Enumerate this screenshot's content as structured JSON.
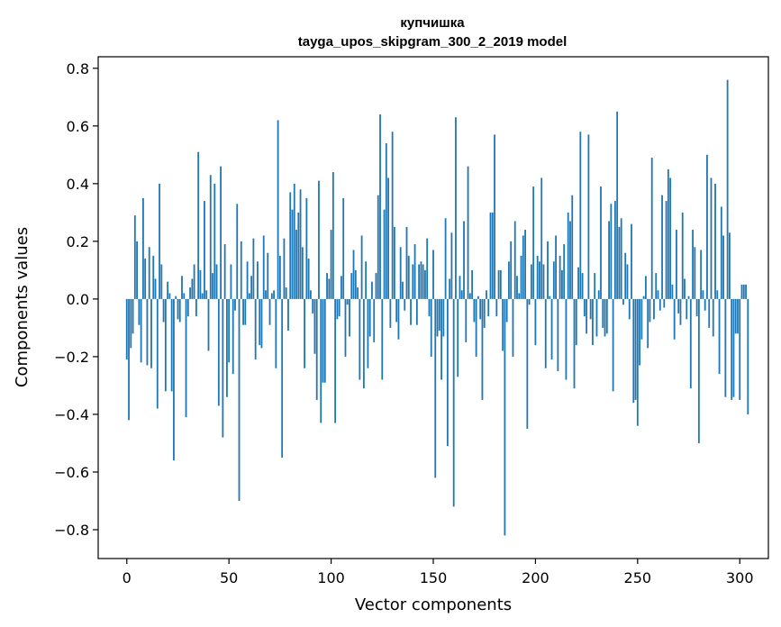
{
  "chart_data": {
    "type": "bar",
    "title": "купчишка",
    "subtitle": "tayga_upos_skipgram_300_2_2019 model",
    "xlabel": "Vector components",
    "ylabel": "Components values",
    "xlim": [
      -14,
      314
    ],
    "ylim": [
      -0.9,
      0.84
    ],
    "xticks": [
      0,
      50,
      100,
      150,
      200,
      250,
      300
    ],
    "yticks": [
      -0.8,
      -0.6,
      -0.4,
      -0.2,
      0.0,
      0.2,
      0.4,
      0.6,
      0.8
    ],
    "xtick_labels": [
      "0",
      "50",
      "100",
      "150",
      "200",
      "250",
      "300"
    ],
    "ytick_labels": [
      "−0.8",
      "−0.6",
      "−0.4",
      "−0.2",
      "0.0",
      "0.2",
      "0.4",
      "0.6",
      "0.8"
    ],
    "color": "#1f77b4",
    "values": [
      -0.21,
      -0.42,
      -0.17,
      -0.12,
      0.29,
      0.2,
      -0.09,
      -0.22,
      0.35,
      0.14,
      -0.23,
      0.18,
      -0.24,
      0.15,
      0.07,
      -0.38,
      0.4,
      0.12,
      -0.08,
      -0.32,
      0.06,
      0.02,
      -0.32,
      -0.56,
      0.01,
      -0.07,
      -0.08,
      0.08,
      0.02,
      -0.41,
      -0.06,
      0.04,
      0.07,
      0.12,
      -0.06,
      0.51,
      0.1,
      0.02,
      0.34,
      0.03,
      -0.18,
      0.43,
      0.09,
      0.4,
      0.12,
      -0.37,
      0.46,
      -0.48,
      0.19,
      -0.34,
      -0.22,
      0.12,
      -0.26,
      -0.04,
      0.33,
      -0.7,
      0.2,
      -0.09,
      -0.09,
      0.13,
      0.02,
      0.08,
      0.21,
      -0.21,
      0.13,
      -0.16,
      -0.17,
      0.22,
      0.03,
      0.16,
      -0.09,
      0.02,
      0.03,
      -0.24,
      0.62,
      0.15,
      -0.55,
      0.21,
      0.04,
      -0.11,
      0.37,
      0.31,
      0.4,
      0.24,
      0.3,
      0.38,
      0.18,
      -0.24,
      0.35,
      0.14,
      0.03,
      -0.05,
      -0.19,
      -0.35,
      0.41,
      -0.43,
      -0.29,
      -0.29,
      0.09,
      0.07,
      0.24,
      0.44,
      -0.43,
      -0.07,
      -0.06,
      0.08,
      0.35,
      -0.2,
      -0.02,
      -0.13,
      0.09,
      0.17,
      0.1,
      0.04,
      -0.28,
      0.22,
      -0.31,
      0.13,
      -0.24,
      -0.13,
      0.06,
      -0.15,
      0.09,
      0.36,
      0.64,
      -0.28,
      0.31,
      0.54,
      0.42,
      -0.1,
      0.58,
      0.25,
      -0.08,
      -0.14,
      0.18,
      0.06,
      -0.04,
      0.25,
      0.15,
      -0.09,
      0.12,
      0.19,
      -0.09,
      0.12,
      0.13,
      0.12,
      0.1,
      0.21,
      -0.06,
      -0.2,
      0.17,
      -0.62,
      -0.13,
      -0.11,
      -0.28,
      -0.13,
      0.28,
      -0.51,
      0.07,
      0.23,
      -0.72,
      0.63,
      -0.27,
      0.08,
      0.03,
      0.27,
      -0.15,
      0.46,
      0.02,
      0.1,
      -0.08,
      -0.2,
      0.01,
      -0.07,
      -0.35,
      -0.1,
      0.03,
      -0.06,
      0.3,
      0.3,
      0.57,
      -0.06,
      0.1,
      0.1,
      -0.18,
      -0.82,
      -0.08,
      0.13,
      0.2,
      -0.2,
      0.27,
      0.08,
      0.02,
      0.15,
      0.22,
      0.24,
      -0.45,
      -0.02,
      0.12,
      0.39,
      -0.16,
      0.15,
      0.13,
      0.42,
      0.12,
      -0.24,
      0.2,
      0.01,
      -0.21,
      0.13,
      0.22,
      -0.25,
      0.15,
      0.1,
      0.19,
      -0.28,
      0.3,
      0.27,
      0.36,
      -0.31,
      -0.16,
      0.11,
      0.58,
      0.09,
      -0.06,
      -0.12,
      0.57,
      -0.07,
      -0.16,
      0.09,
      -0.13,
      0.03,
      0.39,
      -0.1,
      -0.13,
      -0.12,
      0.27,
      0.33,
      -0.32,
      0.34,
      0.65,
      0.25,
      0.28,
      -0.02,
      0.16,
      0.12,
      -0.07,
      0.26,
      -0.36,
      -0.35,
      -0.44,
      -0.23,
      -0.14,
      0.01,
      0.08,
      -0.17,
      -0.08,
      0.49,
      -0.07,
      0.09,
      0.03,
      -0.04,
      0.36,
      -0.03,
      0.34,
      0.45,
      0.42,
      0.05,
      -0.14,
      0.24,
      -0.05,
      -0.09,
      0.3,
      0.07,
      -0.07,
      0.01,
      -0.31,
      0.24,
      0.18,
      -0.06,
      -0.5,
      0.17,
      0.03,
      -0.04,
      0.5,
      -0.1,
      0.42,
      -0.13,
      0.4,
      0.03,
      -0.26,
      0.32,
      0.22,
      -0.34,
      0.76,
      0.23,
      -0.35,
      -0.34,
      -0.12,
      -0.12,
      -0.35,
      0.05,
      0.05,
      0.05,
      -0.4
    ]
  }
}
